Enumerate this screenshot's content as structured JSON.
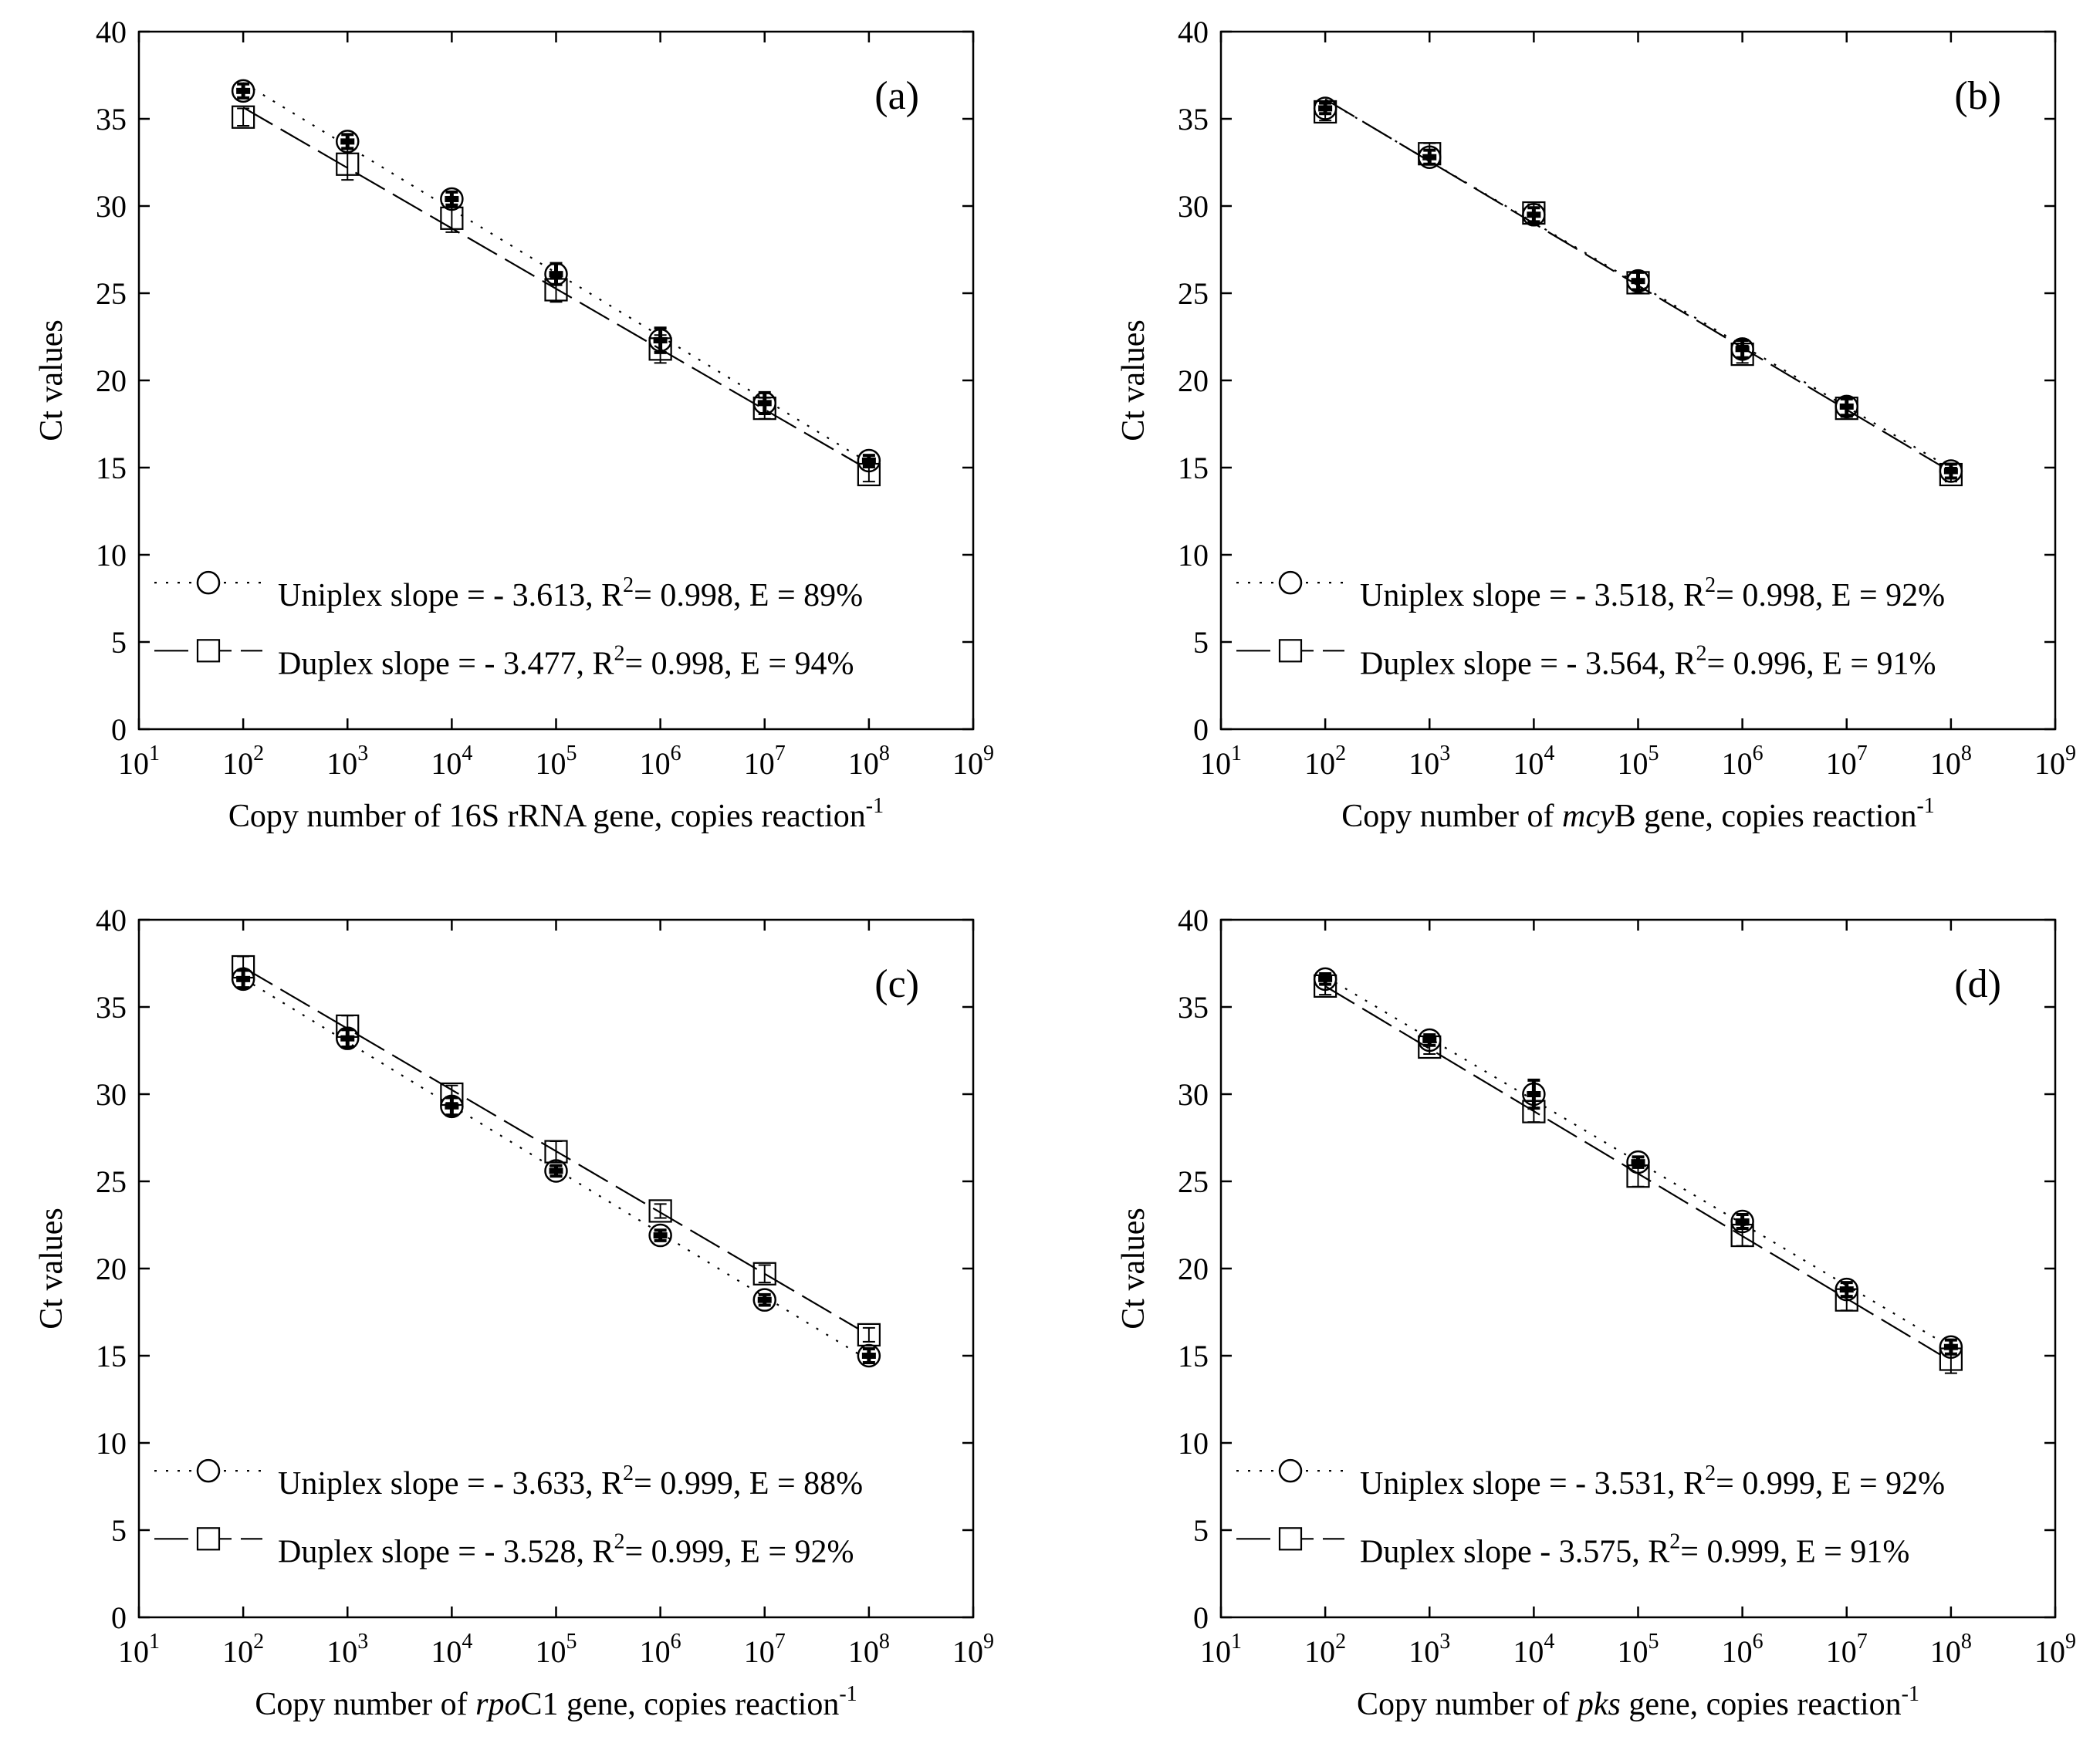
{
  "axis_common": {
    "ylabel": "Ct values",
    "ylim": [
      0,
      40
    ],
    "yticks": [
      0,
      5,
      10,
      15,
      20,
      25,
      30,
      35,
      40
    ],
    "xlim_log10": [
      1,
      9
    ],
    "xticks_exp": [
      1,
      2,
      3,
      4,
      5,
      6,
      7,
      8,
      9
    ],
    "tick_base": "10"
  },
  "chart_data": [
    {
      "type": "scatter",
      "panel": "(a)",
      "xlabel": {
        "prefix": "Copy number of 16S rRNA gene, copies reaction",
        "gene_italic": "",
        "middle": "",
        "exp": "-1"
      },
      "xlabel_parts": [
        "Copy number of 16S rRNA gene, copies reaction"
      ],
      "x": [
        100,
        1000,
        10000,
        100000,
        1000000,
        10000000,
        100000000
      ],
      "series": [
        {
          "name": "Uniplex",
          "marker": "circle",
          "line": "dotted",
          "values": [
            36.6,
            33.7,
            30.4,
            26.1,
            22.3,
            18.7,
            15.4
          ],
          "errors": [
            0.4,
            0.4,
            0.4,
            0.6,
            0.7,
            0.6,
            0.3
          ],
          "legend": {
            "pre": "Uniplex slope = - 3.613, R",
            "sup": "2",
            "post": "= 0.998, E = 89%"
          }
        },
        {
          "name": "Duplex",
          "marker": "square",
          "line": "dashed",
          "values": [
            35.1,
            32.4,
            29.3,
            25.2,
            21.8,
            18.4,
            14.6
          ],
          "errors": [
            0.5,
            0.9,
            0.8,
            0.7,
            0.8,
            0.6,
            0.4
          ],
          "legend": {
            "pre": "Duplex slope = - 3.477, R",
            "sup": "2",
            "post": "= 0.998, E = 94%"
          }
        }
      ]
    },
    {
      "type": "scatter",
      "panel": "(b)",
      "xlabel": {
        "prefix": "Copy number of ",
        "gene_italic": "mcy",
        "middle": "B gene, copies reaction",
        "exp": "-1"
      },
      "x": [
        100,
        1000,
        10000,
        100000,
        1000000,
        10000000,
        100000000
      ],
      "series": [
        {
          "name": "Uniplex",
          "marker": "circle",
          "line": "dotted",
          "values": [
            35.6,
            32.8,
            29.5,
            25.7,
            21.8,
            18.5,
            14.8
          ],
          "errors": [
            0.3,
            0.4,
            0.4,
            0.5,
            0.5,
            0.5,
            0.4
          ],
          "legend": {
            "pre": "Uniplex slope = - 3.518, R",
            "sup": "2",
            "post": "= 0.998, E = 92%"
          }
        },
        {
          "name": "Duplex",
          "marker": "square",
          "line": "dashed",
          "values": [
            35.4,
            33.0,
            29.6,
            25.6,
            21.5,
            18.4,
            14.6
          ],
          "errors": [
            0.5,
            0.6,
            0.5,
            0.6,
            0.5,
            0.5,
            0.4
          ],
          "legend": {
            "pre": "Duplex slope = - 3.564, R",
            "sup": "2",
            "post": "= 0.996, E = 91%"
          }
        }
      ]
    },
    {
      "type": "scatter",
      "panel": "(c)",
      "xlabel": {
        "prefix": "Copy number of ",
        "gene_italic": "rpo",
        "middle": "C1 gene, copies reaction",
        "exp": "-1"
      },
      "x": [
        100,
        1000,
        10000,
        100000,
        1000000,
        10000000,
        100000000
      ],
      "series": [
        {
          "name": "Uniplex",
          "marker": "circle",
          "line": "dotted",
          "values": [
            36.6,
            33.2,
            29.3,
            25.6,
            21.9,
            18.2,
            15.0
          ],
          "errors": [
            0.5,
            0.5,
            0.5,
            0.3,
            0.3,
            0.3,
            0.4
          ],
          "legend": {
            "pre": "Uniplex slope = - 3.633, R",
            "sup": "2",
            "post": "= 0.999, E = 88%"
          }
        },
        {
          "name": "Duplex",
          "marker": "square",
          "line": "dashed",
          "values": [
            37.3,
            33.9,
            30.0,
            26.7,
            23.3,
            19.7,
            16.2
          ],
          "errors": [
            0.6,
            0.6,
            0.5,
            0.6,
            0.4,
            0.5,
            0.4
          ],
          "legend": {
            "pre": "Duplex slope = - 3.528, R",
            "sup": "2",
            "post": "= 0.999, E = 92%"
          }
        }
      ]
    },
    {
      "type": "scatter",
      "panel": "(d)",
      "xlabel": {
        "prefix": "Copy number of ",
        "gene_italic": "pks",
        "middle": " gene, copies reaction",
        "exp": "-1"
      },
      "x": [
        100,
        1000,
        10000,
        100000,
        1000000,
        10000000,
        100000000
      ],
      "series": [
        {
          "name": "Uniplex",
          "marker": "circle",
          "line": "dotted",
          "values": [
            36.6,
            33.1,
            30.0,
            26.1,
            22.7,
            18.8,
            15.5
          ],
          "errors": [
            0.3,
            0.3,
            0.8,
            0.3,
            0.4,
            0.4,
            0.4
          ],
          "legend": {
            "pre": "Uniplex slope = - 3.531, R",
            "sup": "2",
            "post": "= 0.999, E = 92%"
          }
        },
        {
          "name": "Duplex",
          "marker": "square",
          "line": "dashed",
          "values": [
            36.2,
            32.7,
            29.0,
            25.3,
            21.9,
            18.2,
            14.8
          ],
          "errors": [
            0.5,
            0.4,
            0.6,
            0.6,
            0.6,
            0.6,
            0.8
          ],
          "legend": {
            "pre": "Duplex slope - 3.575, R",
            "sup": "2",
            "post": "= 0.999, E = 91%"
          }
        }
      ]
    }
  ]
}
